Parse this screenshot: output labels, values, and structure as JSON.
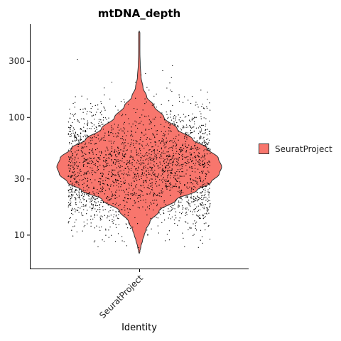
{
  "chart_data": {
    "type": "violin",
    "title": "mtDNA_depth",
    "xlabel": "Identity",
    "ylabel": "",
    "y_scale": "log10",
    "ylim": [
      5.2,
      620
    ],
    "y_ticks": [
      10,
      30,
      100,
      300
    ],
    "y_tick_labels": [
      "10",
      "30",
      "100",
      "300"
    ],
    "categories": [
      "SeuratProject"
    ],
    "legend": {
      "position": "right",
      "entries": [
        "SeuratProject"
      ]
    },
    "grid": false,
    "points_shown": true,
    "series": [
      {
        "name": "SeuratProject",
        "color": "#F8766D",
        "min": 7,
        "max": 540,
        "approx_median": 38,
        "density_profile": [
          {
            "y": 7,
            "w": 0.0
          },
          {
            "y": 8,
            "w": 0.02
          },
          {
            "y": 9,
            "w": 0.04
          },
          {
            "y": 10,
            "w": 0.06
          },
          {
            "y": 11,
            "w": 0.08
          },
          {
            "y": 13,
            "w": 0.13
          },
          {
            "y": 16,
            "w": 0.24
          },
          {
            "y": 20,
            "w": 0.45
          },
          {
            "y": 24,
            "w": 0.7
          },
          {
            "y": 28,
            "w": 0.87
          },
          {
            "y": 33,
            "w": 0.97
          },
          {
            "y": 38,
            "w": 1.0
          },
          {
            "y": 45,
            "w": 0.96
          },
          {
            "y": 55,
            "w": 0.82
          },
          {
            "y": 65,
            "w": 0.65
          },
          {
            "y": 80,
            "w": 0.46
          },
          {
            "y": 100,
            "w": 0.3
          },
          {
            "y": 125,
            "w": 0.18
          },
          {
            "y": 150,
            "w": 0.09
          },
          {
            "y": 180,
            "w": 0.045
          },
          {
            "y": 220,
            "w": 0.022
          },
          {
            "y": 280,
            "w": 0.012
          },
          {
            "y": 350,
            "w": 0.008
          },
          {
            "y": 450,
            "w": 0.005
          },
          {
            "y": 540,
            "w": 0.0
          }
        ]
      }
    ]
  }
}
